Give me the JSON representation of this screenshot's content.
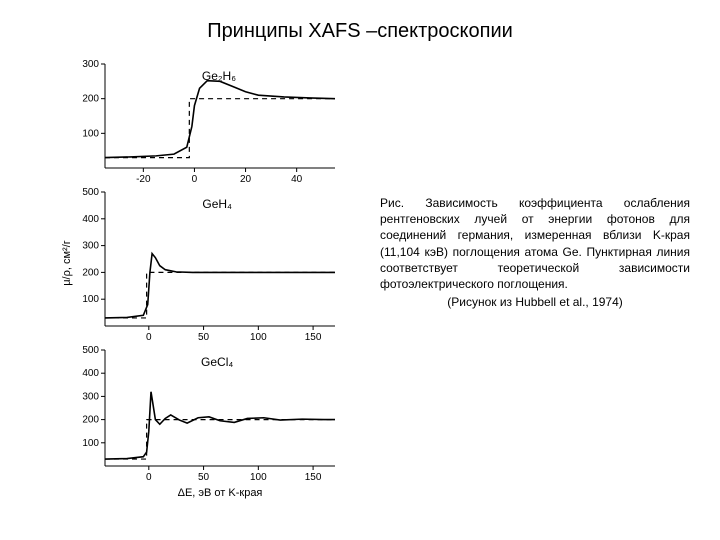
{
  "title": "Принципы XAFS –спектроскопии",
  "caption": {
    "line1": "Рис. Зависимость коэффициента ослабления рентгеновских лучей от энергии фотонов для соединений германия, измеренная вблизи",
    "line2": "K-края (11,104 кэВ) поглощения атома Ge. Пунктирная линия соответствует теоретической зависимости фотоэлектрического поглощения.",
    "ref": "(Рисунок из Hubbell et al., 1974)"
  },
  "ylabel": "μ/ρ, см²/г",
  "xlabel": "ΔE, эВ от K-края",
  "colors": {
    "background": "#ffffff",
    "axis": "#000000",
    "line": "#000000",
    "dashed": "#000000",
    "text": "#000000"
  },
  "line_width_solid": 1.6,
  "line_width_dashed": 1.2,
  "dash_pattern": "5,4",
  "panels": [
    {
      "label": "Ge₂H₆",
      "xlim": [
        -35,
        55
      ],
      "ylim": [
        0,
        300
      ],
      "xticks": [
        -20,
        0,
        20,
        40
      ],
      "yticks": [
        100,
        200,
        300
      ],
      "solid": [
        [
          -35,
          30
        ],
        [
          -25,
          32
        ],
        [
          -15,
          35
        ],
        [
          -8,
          40
        ],
        [
          -3,
          60
        ],
        [
          -1,
          120
        ],
        [
          0,
          180
        ],
        [
          2,
          230
        ],
        [
          5,
          252
        ],
        [
          10,
          250
        ],
        [
          15,
          235
        ],
        [
          20,
          220
        ],
        [
          25,
          210
        ],
        [
          35,
          205
        ],
        [
          45,
          202
        ],
        [
          55,
          200
        ]
      ],
      "dashed": [
        [
          -35,
          30
        ],
        [
          -2,
          30
        ],
        [
          -2,
          200
        ],
        [
          55,
          200
        ]
      ]
    },
    {
      "label": "GeH₄",
      "xlim": [
        -40,
        170
      ],
      "ylim": [
        0,
        500
      ],
      "xticks": [
        0,
        50,
        100,
        150
      ],
      "yticks": [
        100,
        200,
        300,
        400,
        500
      ],
      "solid": [
        [
          -40,
          30
        ],
        [
          -20,
          32
        ],
        [
          -5,
          40
        ],
        [
          -1,
          80
        ],
        [
          1,
          200
        ],
        [
          3,
          270
        ],
        [
          6,
          255
        ],
        [
          10,
          225
        ],
        [
          15,
          210
        ],
        [
          25,
          202
        ],
        [
          40,
          200
        ],
        [
          60,
          200
        ],
        [
          100,
          200
        ],
        [
          150,
          200
        ],
        [
          170,
          200
        ]
      ],
      "dashed": [
        [
          -40,
          30
        ],
        [
          -2,
          30
        ],
        [
          -2,
          200
        ],
        [
          170,
          200
        ]
      ]
    },
    {
      "label": "GeCl₄",
      "xlim": [
        -40,
        170
      ],
      "ylim": [
        0,
        500
      ],
      "xticks": [
        0,
        50,
        100,
        150
      ],
      "yticks": [
        100,
        200,
        300,
        400,
        500
      ],
      "solid": [
        [
          -40,
          30
        ],
        [
          -20,
          32
        ],
        [
          -5,
          40
        ],
        [
          -2,
          60
        ],
        [
          0,
          150
        ],
        [
          2,
          320
        ],
        [
          4,
          260
        ],
        [
          6,
          200
        ],
        [
          10,
          180
        ],
        [
          15,
          205
        ],
        [
          20,
          220
        ],
        [
          28,
          198
        ],
        [
          35,
          185
        ],
        [
          45,
          208
        ],
        [
          55,
          212
        ],
        [
          65,
          195
        ],
        [
          78,
          188
        ],
        [
          90,
          205
        ],
        [
          105,
          208
        ],
        [
          120,
          198
        ],
        [
          140,
          202
        ],
        [
          160,
          200
        ],
        [
          170,
          200
        ]
      ],
      "dashed": [
        [
          -40,
          30
        ],
        [
          -2,
          30
        ],
        [
          -2,
          200
        ],
        [
          170,
          200
        ]
      ]
    }
  ]
}
